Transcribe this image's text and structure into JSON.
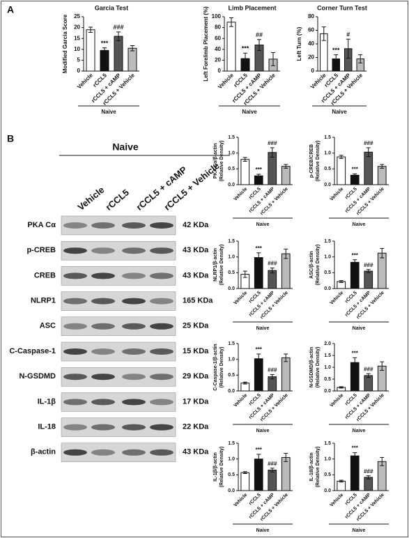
{
  "panel_labels": [
    "A",
    "B"
  ],
  "blot": {
    "title": "Naive",
    "lanes": [
      "Vehicle",
      "rCCL5",
      "rCCL5 + cAMP",
      "rCCL5 + Vehicle"
    ],
    "rows": [
      {
        "protein": "PKA Cα",
        "size": "42 KDa"
      },
      {
        "protein": "p-CREB",
        "size": "43 KDa"
      },
      {
        "protein": "CREB",
        "size": "43 KDa"
      },
      {
        "protein": "NLRP1",
        "size": "165 KDa"
      },
      {
        "protein": "ASC",
        "size": "25 KDa"
      },
      {
        "protein": "C-Caspase-1",
        "size": "15 KDa"
      },
      {
        "protein": "N-GSDMD",
        "size": "29 KDa"
      },
      {
        "protein": "IL-1β",
        "size": "17 KDa"
      },
      {
        "protein": "IL-18",
        "size": "22 KDa"
      },
      {
        "protein": "β-actin",
        "size": "43 KDa"
      }
    ]
  },
  "chart_data": [
    {
      "type": "bar",
      "title": "Garcia Test",
      "ylabel": [
        "Modified Garcia Score"
      ],
      "group": "Naive",
      "categories": [
        "Vehicle",
        "rCCL5",
        "rCCL5 + cAMP",
        "rCCL5 + Vehicle"
      ],
      "values": [
        19,
        9.5,
        16,
        10.5
      ],
      "errors": [
        1.2,
        1.2,
        2,
        1.2
      ],
      "colors": [
        "#ffffff",
        "#111111",
        "#555555",
        "#bbbbbb"
      ],
      "annotations": [
        {
          "category": "rCCL5",
          "text": "***"
        },
        {
          "category": "rCCL5 + cAMP",
          "text": "###"
        }
      ],
      "ylim": [
        0,
        25
      ],
      "yticks": [
        0,
        5,
        10,
        15,
        20,
        25
      ]
    },
    {
      "type": "bar",
      "title": "Limb Placement",
      "ylabel": [
        "Left Forelimb Placement (%)"
      ],
      "group": "Naive",
      "categories": [
        "Vehicle",
        "rCCL5",
        "rCCL5 + cAMP",
        "rCCL5 + Vehicle"
      ],
      "values": [
        90,
        23,
        48,
        22
      ],
      "errors": [
        8,
        10,
        10,
        12
      ],
      "colors": [
        "#ffffff",
        "#111111",
        "#555555",
        "#bbbbbb"
      ],
      "annotations": [
        {
          "category": "rCCL5",
          "text": "***"
        },
        {
          "category": "rCCL5 + cAMP",
          "text": "##"
        }
      ],
      "ylim": [
        0,
        100
      ],
      "yticks": [
        0,
        20,
        40,
        60,
        80,
        100
      ]
    },
    {
      "type": "bar",
      "title": "Corner Turn Test",
      "ylabel": [
        "Left Turn (%)"
      ],
      "group": "Naive",
      "categories": [
        "Vehicle",
        "rCCL5",
        "rCCL5 + cAMP",
        "rCCL5 + Vehicle"
      ],
      "values": [
        55,
        18,
        33,
        18
      ],
      "errors": [
        10,
        6,
        14,
        6
      ],
      "colors": [
        "#ffffff",
        "#111111",
        "#555555",
        "#bbbbbb"
      ],
      "annotations": [
        {
          "category": "rCCL5",
          "text": "***"
        },
        {
          "category": "rCCL5 + cAMP",
          "text": "#"
        }
      ],
      "ylim": [
        0,
        80
      ],
      "yticks": [
        0,
        20,
        40,
        60,
        80
      ]
    },
    {
      "type": "bar",
      "ylabel": [
        "PKA Cα/β-actin",
        "(Relative Density)"
      ],
      "group": "Naive",
      "categories": [
        "Vehicle",
        "rCCL5",
        "rCCL5 + cAMP",
        "rCCL5 + Vehicle"
      ],
      "values": [
        0.8,
        0.28,
        1.02,
        0.58
      ],
      "errors": [
        0.06,
        0.05,
        0.15,
        0.06
      ],
      "colors": [
        "#ffffff",
        "#111111",
        "#555555",
        "#bbbbbb"
      ],
      "annotations": [
        {
          "category": "rCCL5",
          "text": "***"
        },
        {
          "category": "rCCL5 + cAMP",
          "text": "###"
        }
      ],
      "ylim": [
        0,
        1.5
      ],
      "yticks": [
        {
          "value": 0,
          "label": "0.0"
        },
        0.5,
        {
          "value": 1,
          "label": "1.0"
        },
        1.5
      ]
    },
    {
      "type": "bar",
      "ylabel": [
        "p-CREB/CREB",
        "(Relative Density)"
      ],
      "group": "Naive",
      "categories": [
        "Vehicle",
        "rCCL5",
        "rCCL5 + cAMP",
        "rCCL5 + Vehicle"
      ],
      "values": [
        0.88,
        0.3,
        1.03,
        0.58
      ],
      "errors": [
        0.05,
        0.04,
        0.14,
        0.06
      ],
      "colors": [
        "#ffffff",
        "#111111",
        "#555555",
        "#bbbbbb"
      ],
      "annotations": [
        {
          "category": "rCCL5",
          "text": "***"
        },
        {
          "category": "rCCL5 + cAMP",
          "text": "###"
        }
      ],
      "ylim": [
        0,
        1.5
      ],
      "yticks": [
        {
          "value": 0,
          "label": "0.0"
        },
        0.5,
        {
          "value": 1,
          "label": "1.0"
        },
        1.5
      ]
    },
    {
      "type": "bar",
      "ylabel": [
        "NLRP1/β-actin",
        "(Relative Density)"
      ],
      "group": "Naive",
      "categories": [
        "Vehicle",
        "rCCL5",
        "rCCL5 + cAMP",
        "rCCL5 + Vehicle"
      ],
      "values": [
        0.45,
        0.98,
        0.57,
        1.1
      ],
      "errors": [
        0.1,
        0.15,
        0.08,
        0.15
      ],
      "colors": [
        "#ffffff",
        "#111111",
        "#555555",
        "#bbbbbb"
      ],
      "annotations": [
        {
          "category": "rCCL5",
          "text": "***"
        },
        {
          "category": "rCCL5 + cAMP",
          "text": "###"
        }
      ],
      "ylim": [
        0,
        1.5
      ],
      "yticks": [
        {
          "value": 0,
          "label": "0.0"
        },
        0.5,
        {
          "value": 1,
          "label": "1.0"
        },
        1.5
      ]
    },
    {
      "type": "bar",
      "ylabel": [
        "ASC/β-actin",
        "(Relative Density)"
      ],
      "group": "Naive",
      "categories": [
        "Vehicle",
        "rCCL5",
        "rCCL5 + cAMP",
        "rCCL5 + Vehicle"
      ],
      "values": [
        0.22,
        0.83,
        0.55,
        1.12
      ],
      "errors": [
        0.03,
        0.08,
        0.05,
        0.15
      ],
      "colors": [
        "#ffffff",
        "#111111",
        "#555555",
        "#bbbbbb"
      ],
      "annotations": [
        {
          "category": "rCCL5",
          "text": "***"
        },
        {
          "category": "rCCL5 + cAMP",
          "text": "###"
        }
      ],
      "ylim": [
        0,
        1.5
      ],
      "yticks": [
        {
          "value": 0,
          "label": "0.0"
        },
        0.5,
        {
          "value": 1,
          "label": "1.0"
        },
        1.5
      ]
    },
    {
      "type": "bar",
      "ylabel": [
        "C-Caspase-1/β-actin",
        "(Relative Density)"
      ],
      "group": "Naive",
      "categories": [
        "Vehicle",
        "rCCL5",
        "rCCL5 + cAMP",
        "rCCL5 + Vehicle"
      ],
      "values": [
        0.25,
        1.02,
        0.45,
        1.05
      ],
      "errors": [
        0.03,
        0.15,
        0.07,
        0.12
      ],
      "colors": [
        "#ffffff",
        "#111111",
        "#555555",
        "#bbbbbb"
      ],
      "annotations": [
        {
          "category": "rCCL5",
          "text": "***"
        },
        {
          "category": "rCCL5 + cAMP",
          "text": "###"
        }
      ],
      "ylim": [
        0,
        1.5
      ],
      "yticks": [
        {
          "value": 0,
          "label": "0.0"
        },
        0.5,
        {
          "value": 1,
          "label": "1.0"
        },
        1.5
      ]
    },
    {
      "type": "bar",
      "ylabel": [
        "N-GSDMD/β-actin",
        "(Relative Density)"
      ],
      "group": "Naive",
      "categories": [
        "Vehicle",
        "rCCL5",
        "rCCL5 + cAMP",
        "rCCL5 + Vehicle"
      ],
      "values": [
        0.15,
        1.2,
        0.65,
        1.05
      ],
      "errors": [
        0.03,
        0.2,
        0.08,
        0.18
      ],
      "colors": [
        "#ffffff",
        "#111111",
        "#555555",
        "#bbbbbb"
      ],
      "annotations": [
        {
          "category": "rCCL5",
          "text": "***"
        },
        {
          "category": "rCCL5 + cAMP",
          "text": "###"
        }
      ],
      "ylim": [
        0,
        2
      ],
      "yticks": [
        {
          "value": 0,
          "label": "0.0"
        },
        0.5,
        {
          "value": 1,
          "label": "1.0"
        },
        1.5,
        {
          "value": 2,
          "label": "2.0"
        }
      ]
    },
    {
      "type": "bar",
      "ylabel": [
        "IL-1β/β-actin",
        "(Relative Density)"
      ],
      "group": "Naive",
      "categories": [
        "Vehicle",
        "rCCL5",
        "rCCL5 + cAMP",
        "rCCL5 + Vehicle"
      ],
      "values": [
        0.57,
        1.0,
        0.65,
        1.05
      ],
      "errors": [
        0.03,
        0.15,
        0.06,
        0.13
      ],
      "colors": [
        "#ffffff",
        "#111111",
        "#555555",
        "#bbbbbb"
      ],
      "annotations": [
        {
          "category": "rCCL5",
          "text": "***"
        },
        {
          "category": "rCCL5 + cAMP",
          "text": "###"
        }
      ],
      "ylim": [
        0,
        1.5
      ],
      "yticks": [
        {
          "value": 0,
          "label": "0.0"
        },
        0.5,
        {
          "value": 1,
          "label": "1.0"
        },
        1.5
      ]
    },
    {
      "type": "bar",
      "ylabel": [
        "IL-18/β-actin",
        "(Relative Density)"
      ],
      "group": "Naive",
      "categories": [
        "Vehicle",
        "rCCL5",
        "rCCL5 + cAMP",
        "rCCL5 + Vehicle"
      ],
      "values": [
        0.3,
        1.1,
        0.42,
        0.92
      ],
      "errors": [
        0.03,
        0.1,
        0.05,
        0.13
      ],
      "colors": [
        "#ffffff",
        "#111111",
        "#555555",
        "#bbbbbb"
      ],
      "annotations": [
        {
          "category": "rCCL5",
          "text": "***"
        },
        {
          "category": "rCCL5 + cAMP",
          "text": "###"
        }
      ],
      "ylim": [
        0,
        1.5
      ],
      "yticks": [
        {
          "value": 0,
          "label": "0.0"
        },
        0.5,
        {
          "value": 1,
          "label": "1.0"
        },
        1.5
      ]
    }
  ]
}
